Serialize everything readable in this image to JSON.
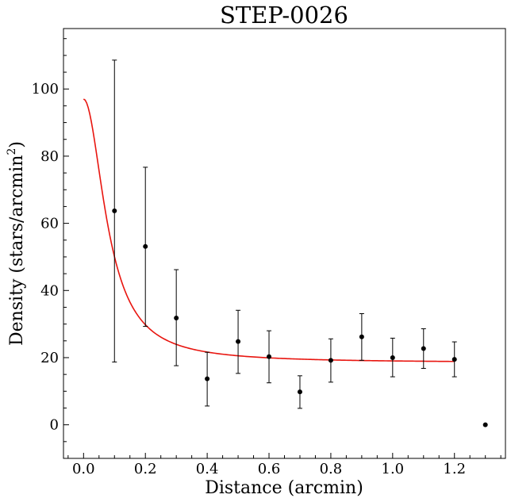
{
  "chart_data": {
    "type": "scatter",
    "title": "STEP-0026",
    "xlabel": "Distance (arcmin)",
    "ylabel": "Density (stars/arcmin",
    "ylabel_superscript": "2",
    "ylabel_suffix": ")",
    "xlim": [
      -0.065,
      1.365
    ],
    "ylim": [
      -10,
      118
    ],
    "x_ticks": [
      0.0,
      0.2,
      0.4,
      0.6,
      0.8,
      1.0,
      1.2
    ],
    "x_tick_labels": [
      "0.0",
      "0.2",
      "0.4",
      "0.6",
      "0.8",
      "1.0",
      "1.2"
    ],
    "y_ticks": [
      0,
      20,
      40,
      60,
      80,
      100
    ],
    "y_tick_labels": [
      "0",
      "20",
      "40",
      "60",
      "80",
      "100"
    ],
    "grid": false,
    "points": {
      "x": [
        0.1,
        0.2,
        0.3,
        0.4,
        0.5,
        0.6,
        0.7,
        0.8,
        0.9,
        1.0,
        1.1,
        1.2,
        1.3
      ],
      "y": [
        63.7,
        53.1,
        31.8,
        13.7,
        24.8,
        20.3,
        9.8,
        19.2,
        26.2,
        20.0,
        22.7,
        19.5,
        0.0
      ],
      "y_lower": [
        18.7,
        29.3,
        17.6,
        5.6,
        15.3,
        12.5,
        4.9,
        12.7,
        19.2,
        14.3,
        16.8,
        14.3,
        null
      ],
      "y_upper": [
        108.6,
        76.7,
        46.2,
        21.6,
        34.1,
        28.0,
        14.6,
        25.6,
        33.1,
        25.8,
        28.6,
        24.7,
        null
      ],
      "color": "#000000"
    },
    "fit_curve": {
      "model": "king",
      "central_density": 97,
      "background": 18.5,
      "core_radius": 0.082,
      "x_range": [
        0.0,
        1.2
      ],
      "color": "#e8150f"
    }
  }
}
